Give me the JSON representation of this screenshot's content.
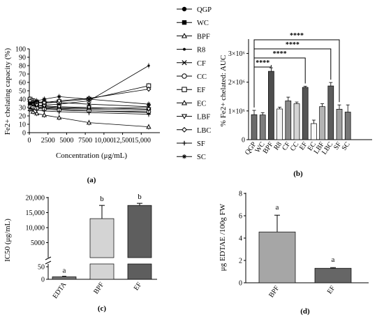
{
  "chart_data": [
    {
      "panel": "(a)",
      "type": "line",
      "xlabel": "Concentration (μg/mL)",
      "ylabel": "Fe2+ chelating capacity (%)",
      "xlim": [
        0,
        17500
      ],
      "ylim": [
        0,
        100
      ],
      "x_ticks": [
        "0",
        "2500",
        "5000",
        "7500",
        "10,000",
        "12,500",
        "15,000"
      ],
      "y_ticks": [
        "0",
        "10",
        "20",
        "30",
        "40",
        "50",
        "60",
        "70",
        "80",
        "90",
        "100"
      ],
      "x": [
        100,
        500,
        1000,
        2000,
        4000,
        8000,
        16000
      ],
      "series": [
        {
          "name": "QGP",
          "marker": "filled-circle",
          "values": [
            32,
            31,
            30,
            29,
            28,
            26,
            24
          ]
        },
        {
          "name": "WC",
          "marker": "filled-square",
          "values": [
            33,
            32,
            31,
            30,
            29,
            28,
            27
          ]
        },
        {
          "name": "BPF",
          "marker": "open-triangle-up",
          "values": [
            36,
            34,
            33,
            31,
            30,
            29,
            30
          ]
        },
        {
          "name": "R8",
          "marker": "small-filled",
          "values": [
            30,
            31,
            32,
            33,
            34,
            38,
            80
          ]
        },
        {
          "name": "CF",
          "marker": "cross",
          "values": [
            34,
            35,
            36,
            37,
            36,
            34,
            31
          ]
        },
        {
          "name": "CC",
          "marker": "open-circle",
          "values": [
            31,
            30,
            29,
            28,
            27,
            26,
            25
          ]
        },
        {
          "name": "EF",
          "marker": "open-square",
          "values": [
            40,
            38,
            36,
            35,
            37,
            40,
            56
          ]
        },
        {
          "name": "EC",
          "marker": "open-triangle-up",
          "values": [
            28,
            25,
            23,
            21,
            18,
            12,
            7
          ]
        },
        {
          "name": "LBF",
          "marker": "open-triangle-down",
          "values": [
            35,
            34,
            33,
            32,
            31,
            30,
            28
          ]
        },
        {
          "name": "LBC",
          "marker": "open-diamond",
          "values": [
            38,
            37,
            37,
            36,
            38,
            41,
            52
          ]
        },
        {
          "name": "SF",
          "marker": "plus",
          "values": [
            29,
            28,
            27,
            26,
            25,
            24,
            22
          ]
        },
        {
          "name": "SC",
          "marker": "star",
          "values": [
            35,
            36,
            38,
            40,
            43,
            40,
            34
          ]
        }
      ]
    },
    {
      "panel": "(b)",
      "type": "bar",
      "ylabel": "% Fe2+ chelated: AUC",
      "ylim": [
        0,
        3500000
      ],
      "y_ticks": [
        "0",
        "1×10⁶",
        "2×10⁶",
        "3×10⁶"
      ],
      "categories": [
        "QGP",
        "WC",
        "BPF",
        "R8",
        "CF",
        "CC",
        "EF",
        "EC",
        "LBF",
        "LBC",
        "SF",
        "SC"
      ],
      "values": [
        870000,
        860000,
        2380000,
        1070000,
        1350000,
        1250000,
        1820000,
        560000,
        1150000,
        1870000,
        1060000,
        960000
      ],
      "errors": [
        150000,
        80000,
        120000,
        60000,
        130000,
        60000,
        40000,
        120000,
        100000,
        120000,
        150000,
        250000
      ],
      "colors": [
        "#6b6b6b",
        "#7d7d7d",
        "#4d4d4d",
        "#f2f2f2",
        "#888888",
        "#d4d4d4",
        "#555555",
        "#f7f7f7",
        "#b3b3b3",
        "#5c5c5c",
        "#a0a0a0",
        "#777777"
      ],
      "significance": [
        {
          "from": "QGP",
          "to": "BPF",
          "label": "****"
        },
        {
          "from": "QGP",
          "to": "EF",
          "label": "****"
        },
        {
          "from": "QGP",
          "to": "LBC",
          "label": "****"
        },
        {
          "from": "QGP",
          "to": "SF",
          "label": "****"
        }
      ]
    },
    {
      "panel": "(c)",
      "type": "bar",
      "ylabel": "IC50 (μg/mL)",
      "broken_axis": true,
      "y_ticks_upper": [
        "5000",
        "10,000",
        "15,000",
        "20,000"
      ],
      "y_ticks_lower": [
        "0",
        "50"
      ],
      "categories": [
        "EDTA",
        "BPF",
        "EF"
      ],
      "values": [
        10,
        13000,
        17400
      ],
      "errors": [
        2,
        4400,
        700
      ],
      "letters": [
        "a",
        "b",
        "b"
      ],
      "colors": [
        "#7a7a7a",
        "#d4d4d4",
        "#5e5e5e"
      ]
    },
    {
      "panel": "(d)",
      "type": "bar",
      "ylabel": "μg EDTAE /100g FW",
      "ylim": [
        0,
        8
      ],
      "y_ticks": [
        "0",
        "2",
        "4",
        "6",
        "8"
      ],
      "categories": [
        "BPF",
        "EF"
      ],
      "values": [
        4.55,
        1.3
      ],
      "errors": [
        1.5,
        0.06
      ],
      "letters": [
        "a",
        "a"
      ],
      "colors": [
        "#a6a6a6",
        "#666666"
      ]
    }
  ]
}
